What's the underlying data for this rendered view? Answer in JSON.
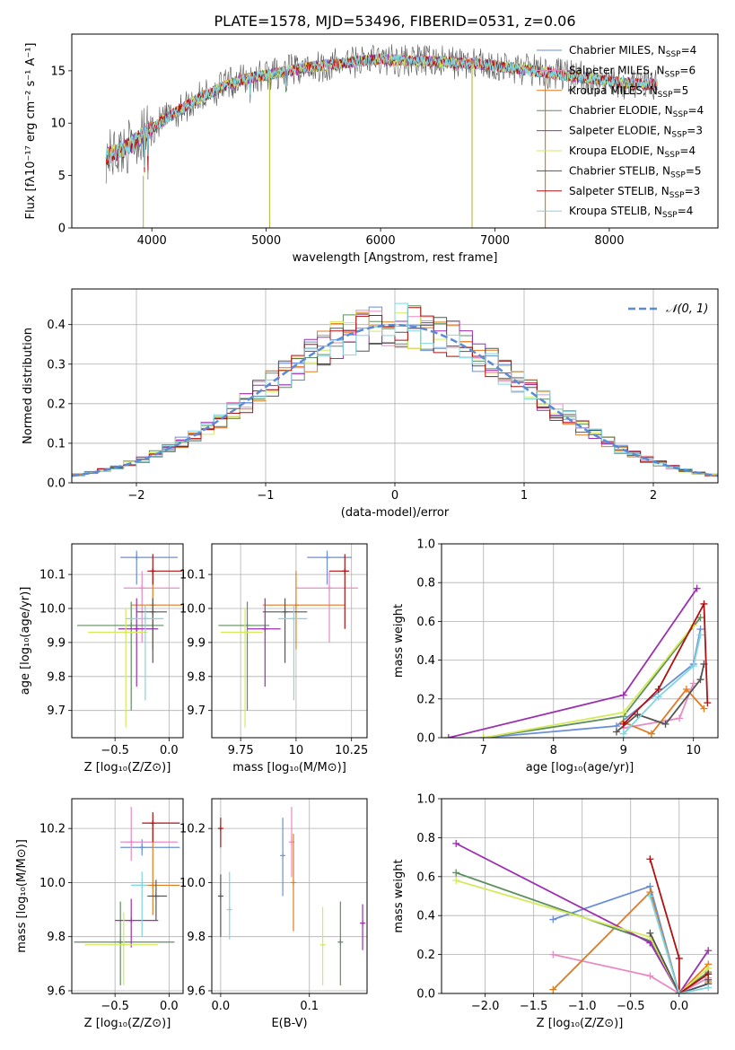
{
  "figure_title": "PLATE=1578, MJD=53496, FIBERID=0531, z=0.06",
  "colors": [
    "#6a8fd6",
    "#e88bc4",
    "#e07b1f",
    "#5e8f5e",
    "#9b2fb0",
    "#d4ea5c",
    "#555555",
    "#b01010",
    "#80d6e0"
  ],
  "chart_data": [
    {
      "type": "line",
      "name": "spectrum",
      "xlabel": "wavelength [Angstrom, rest frame]",
      "ylabel": "Flux [fλ10⁻¹⁷ erg cm⁻² s⁻¹ A⁻¹]",
      "xlim": [
        3300,
        8950
      ],
      "ylim": [
        0,
        18.5
      ],
      "xticks": [
        4000,
        5000,
        6000,
        7000,
        8000
      ],
      "yticks": [
        0,
        5,
        10,
        15
      ],
      "continuum_x": [
        3600,
        3800,
        4000,
        4200,
        4400,
        4600,
        4800,
        5000,
        5200,
        5400,
        5600,
        5800,
        6000,
        6200,
        6400,
        6600,
        6800,
        7000,
        7200,
        7400,
        7600,
        7800,
        8000,
        8200,
        8400
      ],
      "continuum_y": [
        6.8,
        7.8,
        9.5,
        11.0,
        12.3,
        13.4,
        14.2,
        14.6,
        15.0,
        15.4,
        15.6,
        15.9,
        16.1,
        16.0,
        15.9,
        15.8,
        15.7,
        15.5,
        15.2,
        14.9,
        14.6,
        14.3,
        14.0,
        13.8,
        13.7
      ],
      "legend": [
        "Chabrier MILES, N_SSP=4",
        "Salpeter MILES, N_SSP=6",
        "Kroupa MILES, N_SSP=5",
        "Chabrier ELODIE, N_SSP=4",
        "Salpeter ELODIE, N_SSP=3",
        "Kroupa ELODIE, N_SSP=4",
        "Chabrier STELIB, N_SSP=5",
        "Salpeter STELIB, N_SSP=3",
        "Kroupa STELIB, N_SSP=4"
      ]
    },
    {
      "type": "histogram",
      "name": "residuals",
      "xlabel": "(data-model)/error",
      "ylabel": "Normed distribution",
      "xlim": [
        -2.5,
        2.5
      ],
      "ylim": [
        0,
        0.49
      ],
      "xticks": [
        -2,
        -1,
        0,
        1,
        2
      ],
      "yticks": [
        0,
        0.1,
        0.2,
        0.3,
        0.4
      ],
      "legend": [
        "𝒩(0, 1)"
      ]
    },
    {
      "type": "scatter",
      "name": "age-vs-Z",
      "xlabel": "Z [log₁₀(Z/Z⊙)]",
      "ylabel": "age  [log₁₀(age/yr)]",
      "xlim": [
        -0.9,
        0.13
      ],
      "ylim": [
        9.62,
        10.19
      ],
      "xticks": [
        -0.5,
        0.0
      ],
      "yticks": [
        9.7,
        9.8,
        9.9,
        10.0,
        10.1
      ],
      "points": [
        {
          "x": -0.3,
          "y": 10.15,
          "xe": [
            -0.45,
            0.08
          ],
          "ye": [
            10.07,
            10.17
          ]
        },
        {
          "x": -0.25,
          "y": 10.06,
          "xe": [
            -0.42,
            0.1
          ],
          "ye": [
            9.9,
            10.11
          ]
        },
        {
          "x": -0.15,
          "y": 10.01,
          "xe": [
            -0.35,
            0.12
          ],
          "ye": [
            9.88,
            10.11
          ]
        },
        {
          "x": -0.35,
          "y": 9.95,
          "xe": [
            -0.85,
            -0.05
          ],
          "ye": [
            9.7,
            10.02
          ]
        },
        {
          "x": -0.3,
          "y": 9.94,
          "xe": [
            -0.47,
            -0.1
          ],
          "ye": [
            9.77,
            10.03
          ]
        },
        {
          "x": -0.4,
          "y": 9.93,
          "xe": [
            -0.75,
            -0.2
          ],
          "ye": [
            9.65,
            10.0
          ]
        },
        {
          "x": -0.15,
          "y": 9.99,
          "xe": [
            -0.3,
            -0.02
          ],
          "ye": [
            9.84,
            10.03
          ]
        },
        {
          "x": -0.15,
          "y": 10.11,
          "xe": [
            -0.2,
            0.12
          ],
          "ye": [
            10.07,
            10.16
          ]
        },
        {
          "x": -0.22,
          "y": 9.97,
          "xe": [
            -0.4,
            -0.05
          ],
          "ye": [
            9.73,
            10.01
          ]
        }
      ]
    },
    {
      "type": "scatter",
      "name": "age-vs-mass",
      "xlabel": "mass [log₁₀(M/M⊙)]",
      "ylabel": "",
      "xlim": [
        9.62,
        10.32
      ],
      "ylim": [
        9.62,
        10.19
      ],
      "xticks": [
        9.75,
        10.0,
        10.25
      ],
      "yticks": [
        9.7,
        9.8,
        9.9,
        10.0,
        10.1
      ],
      "points": [
        {
          "x": 10.14,
          "y": 10.15,
          "xe": [
            10.05,
            10.25
          ],
          "ye": [
            10.07,
            10.17
          ]
        },
        {
          "x": 10.15,
          "y": 10.06,
          "xe": [
            10.0,
            10.28
          ],
          "ye": [
            9.9,
            10.11
          ]
        },
        {
          "x": 10.0,
          "y": 10.01,
          "xe": [
            9.85,
            10.22
          ],
          "ye": [
            9.88,
            10.11
          ]
        },
        {
          "x": 9.78,
          "y": 9.95,
          "xe": [
            9.65,
            9.88
          ],
          "ye": [
            9.7,
            10.02
          ]
        },
        {
          "x": 9.86,
          "y": 9.94,
          "xe": [
            9.78,
            9.93
          ],
          "ye": [
            9.77,
            10.03
          ]
        },
        {
          "x": 9.77,
          "y": 9.93,
          "xe": [
            9.66,
            9.85
          ],
          "ye": [
            9.65,
            10.0
          ]
        },
        {
          "x": 9.95,
          "y": 9.99,
          "xe": [
            9.85,
            10.05
          ],
          "ye": [
            9.84,
            10.03
          ]
        },
        {
          "x": 10.22,
          "y": 10.11,
          "xe": [
            10.15,
            10.24
          ],
          "ye": [
            9.94,
            10.16
          ]
        },
        {
          "x": 9.99,
          "y": 9.97,
          "xe": [
            9.92,
            10.05
          ],
          "ye": [
            9.73,
            10.01
          ]
        }
      ]
    },
    {
      "type": "line",
      "name": "weight-vs-age",
      "xlabel": "age  [log₁₀(age/yr)]",
      "ylabel": "mass weight",
      "xlim": [
        6.4,
        10.35
      ],
      "ylim": [
        0,
        1.0
      ],
      "xticks": [
        7,
        8,
        9,
        10
      ],
      "yticks": [
        0,
        0.2,
        0.4,
        0.6,
        0.8,
        1.0
      ],
      "series": [
        {
          "x": [
            7.0,
            8.9,
            10.0,
            10.1
          ],
          "y": [
            0.0,
            0.06,
            0.38,
            0.56
          ]
        },
        {
          "x": [
            9.0,
            9.8,
            10.0
          ],
          "y": [
            0.05,
            0.1,
            0.28
          ]
        },
        {
          "x": [
            9.0,
            9.4,
            9.9,
            10.15
          ],
          "y": [
            0.08,
            0.02,
            0.25,
            0.15
          ]
        },
        {
          "x": [
            7.0,
            9.0,
            10.1
          ],
          "y": [
            0.0,
            0.11,
            0.62
          ]
        },
        {
          "x": [
            6.5,
            9.0,
            10.05
          ],
          "y": [
            0.0,
            0.22,
            0.77
          ]
        },
        {
          "x": [
            7.0,
            9.0,
            10.0
          ],
          "y": [
            0.0,
            0.13,
            0.58
          ]
        },
        {
          "x": [
            8.9,
            9.2,
            9.6,
            10.1,
            10.15
          ],
          "y": [
            0.03,
            0.12,
            0.07,
            0.3,
            0.38
          ]
        },
        {
          "x": [
            9.0,
            9.5,
            10.15,
            10.2
          ],
          "y": [
            0.07,
            0.25,
            0.69,
            0.18
          ]
        },
        {
          "x": [
            9.0,
            9.5,
            10.0,
            10.1
          ],
          "y": [
            0.02,
            0.21,
            0.37,
            0.53
          ]
        }
      ]
    },
    {
      "type": "scatter",
      "name": "mass-vs-Z",
      "xlabel": "Z [log₁₀(Z/Z⊙)]",
      "ylabel": "mass [log₁₀(M/M⊙)]",
      "xlim": [
        -0.9,
        0.13
      ],
      "ylim": [
        9.59,
        10.31
      ],
      "xticks": [
        -0.5,
        0.0
      ],
      "yticks": [
        9.6,
        9.8,
        10.0,
        10.2
      ],
      "points": [
        {
          "x": -0.25,
          "y": 10.13,
          "xe": [
            -0.45,
            0.1
          ],
          "ye": [
            10.1,
            10.16
          ]
        },
        {
          "x": -0.35,
          "y": 10.15,
          "xe": [
            -0.45,
            0.08
          ],
          "ye": [
            10.08,
            10.28
          ]
        },
        {
          "x": -0.15,
          "y": 9.99,
          "xe": [
            -0.35,
            0.1
          ],
          "ye": [
            9.88,
            10.22
          ]
        },
        {
          "x": -0.45,
          "y": 9.78,
          "xe": [
            -0.88,
            0.05
          ],
          "ye": [
            9.62,
            9.93
          ]
        },
        {
          "x": -0.35,
          "y": 9.86,
          "xe": [
            -0.5,
            -0.1
          ],
          "ye": [
            9.76,
            9.94
          ]
        },
        {
          "x": -0.42,
          "y": 9.77,
          "xe": [
            -0.78,
            -0.1
          ],
          "ye": [
            9.62,
            9.89
          ]
        },
        {
          "x": -0.12,
          "y": 9.95,
          "xe": [
            -0.2,
            -0.02
          ],
          "ye": [
            9.86,
            10.01
          ]
        },
        {
          "x": -0.15,
          "y": 10.22,
          "xe": [
            -0.25,
            0.1
          ],
          "ye": [
            10.15,
            10.26
          ]
        },
        {
          "x": -0.25,
          "y": 9.99,
          "xe": [
            -0.35,
            -0.2
          ],
          "ye": [
            9.8,
            10.04
          ]
        }
      ]
    },
    {
      "type": "scatter",
      "name": "mass-vs-EBV",
      "xlabel": "E(B-V)",
      "ylabel": "",
      "xlim": [
        -0.01,
        0.165
      ],
      "ylim": [
        9.59,
        10.31
      ],
      "xticks": [
        0.0,
        0.1
      ],
      "yticks": [
        9.6,
        9.8,
        10.0,
        10.2
      ],
      "points": [
        {
          "x": 0.07,
          "y": 10.1,
          "ye": [
            9.95,
            10.24
          ]
        },
        {
          "x": 0.08,
          "y": 10.15,
          "ye": [
            10.02,
            10.28
          ]
        },
        {
          "x": 0.082,
          "y": 10.0,
          "ye": [
            9.82,
            10.18
          ]
        },
        {
          "x": 0.135,
          "y": 9.78,
          "ye": [
            9.62,
            9.93
          ]
        },
        {
          "x": 0.16,
          "y": 9.85,
          "ye": [
            9.75,
            9.92
          ]
        },
        {
          "x": 0.115,
          "y": 9.77,
          "ye": [
            9.62,
            9.91
          ]
        },
        {
          "x": 0.0,
          "y": 9.95,
          "ye": [
            9.8,
            10.03
          ]
        },
        {
          "x": 0.0,
          "y": 10.2,
          "ye": [
            10.13,
            10.24
          ]
        },
        {
          "x": 0.01,
          "y": 9.9,
          "ye": [
            9.79,
            10.04
          ]
        }
      ]
    },
    {
      "type": "line",
      "name": "weight-vs-Z",
      "xlabel": "Z [log₁₀(Z/Z⊙)]",
      "ylabel": "mass weight",
      "xlim": [
        -2.45,
        0.4
      ],
      "ylim": [
        0,
        1.0
      ],
      "xticks": [
        -2.0,
        -1.5,
        -1.0,
        -0.5,
        0.0
      ],
      "yticks": [
        0,
        0.2,
        0.4,
        0.6,
        0.8,
        1.0
      ],
      "series": [
        {
          "x": [
            -1.3,
            -0.3,
            0.0,
            0.3
          ],
          "y": [
            0.38,
            0.55,
            0.0,
            0.05
          ]
        },
        {
          "x": [
            -1.3,
            -0.3,
            0.0,
            0.3
          ],
          "y": [
            0.2,
            0.09,
            0.0,
            0.08
          ]
        },
        {
          "x": [
            -1.3,
            -0.3,
            0.0,
            0.3,
            0.3
          ],
          "y": [
            0.02,
            0.52,
            0.0,
            0.15,
            0.06
          ]
        },
        {
          "x": [
            -2.3,
            -0.3,
            0.0,
            0.3
          ],
          "y": [
            0.62,
            0.27,
            0.0,
            0.11
          ]
        },
        {
          "x": [
            -2.3,
            -0.3,
            0.0,
            0.3
          ],
          "y": [
            0.77,
            0.26,
            0.0,
            0.22
          ]
        },
        {
          "x": [
            -2.3,
            -0.3,
            0.0,
            0.3
          ],
          "y": [
            0.58,
            0.29,
            0.0,
            0.13
          ]
        },
        {
          "x": [
            -0.3,
            0.0,
            0.3,
            0.3
          ],
          "y": [
            0.31,
            0.0,
            0.05,
            0.07
          ]
        },
        {
          "x": [
            -0.3,
            0.0,
            0.0,
            0.3
          ],
          "y": [
            0.69,
            0.18,
            0.0,
            0.1
          ]
        },
        {
          "x": [
            -0.3,
            0.0,
            0.3
          ],
          "y": [
            0.5,
            0.0,
            0.03
          ]
        }
      ]
    }
  ]
}
